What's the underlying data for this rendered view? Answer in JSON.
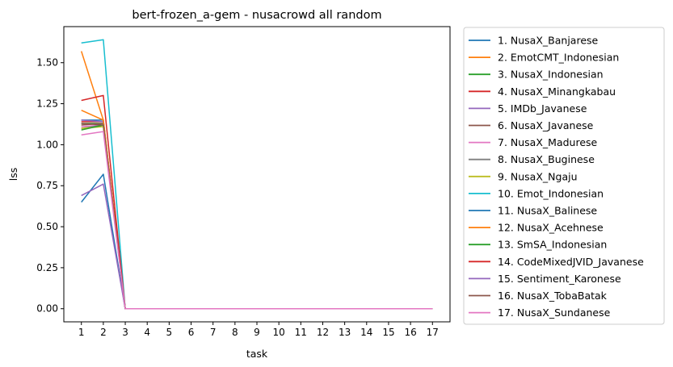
{
  "chart_data": {
    "type": "line",
    "title": "bert-frozen_a-gem - nusacrowd all random",
    "xlabel": "task",
    "ylabel": "lss",
    "x": [
      1,
      2,
      3,
      4,
      5,
      6,
      7,
      8,
      9,
      10,
      11,
      12,
      13,
      14,
      15,
      16,
      17
    ],
    "xticks": [
      "1",
      "2",
      "3",
      "4",
      "5",
      "6",
      "7",
      "8",
      "9",
      "10",
      "11",
      "12",
      "13",
      "14",
      "15",
      "16",
      "17"
    ],
    "yticks": [
      "0.00",
      "0.25",
      "0.50",
      "0.75",
      "1.00",
      "1.25",
      "1.50"
    ],
    "ytick_values": [
      0,
      0.25,
      0.5,
      0.75,
      1.0,
      1.25,
      1.5
    ],
    "xlim": [
      0.2,
      17.8
    ],
    "ylim": [
      -0.08,
      1.72
    ],
    "grid": false,
    "legend_position": "outside-right",
    "series": [
      {
        "name": "1. NusaX_Banjarese",
        "color": "#1f77b4",
        "values": [
          1.15,
          1.15,
          0.0,
          0,
          0,
          0,
          0,
          0,
          0,
          0,
          0,
          0,
          0,
          0,
          0,
          0,
          0
        ]
      },
      {
        "name": "2. EmotCMT_Indonesian",
        "color": "#ff7f0e",
        "values": [
          1.57,
          1.15,
          0.0,
          0,
          0,
          0,
          0,
          0,
          0,
          0,
          0,
          0,
          0,
          0,
          0,
          0,
          0
        ]
      },
      {
        "name": "3. NusaX_Indonesian",
        "color": "#2ca02c",
        "values": [
          1.13,
          1.13,
          0.0,
          0,
          0,
          0,
          0,
          0,
          0,
          0,
          0,
          0,
          0,
          0,
          0,
          0,
          0
        ]
      },
      {
        "name": "4. NusaX_Minangkabau",
        "color": "#d62728",
        "values": [
          1.14,
          1.14,
          0.0,
          0,
          0,
          0,
          0,
          0,
          0,
          0,
          0,
          0,
          0,
          0,
          0,
          0,
          0
        ]
      },
      {
        "name": "5. IMDb_Javanese",
        "color": "#9467bd",
        "values": [
          1.15,
          1.14,
          0.0,
          0,
          0,
          0,
          0,
          0,
          0,
          0,
          0,
          0,
          0,
          0,
          0,
          0,
          0
        ]
      },
      {
        "name": "6. NusaX_Javanese",
        "color": "#8c564b",
        "values": [
          1.12,
          1.13,
          0.0,
          0,
          0,
          0,
          0,
          0,
          0,
          0,
          0,
          0,
          0,
          0,
          0,
          0,
          0
        ]
      },
      {
        "name": "7. NusaX_Madurese",
        "color": "#e377c2",
        "values": [
          1.11,
          1.12,
          0.0,
          0,
          0,
          0,
          0,
          0,
          0,
          0,
          0,
          0,
          0,
          0,
          0,
          0,
          0
        ]
      },
      {
        "name": "8. NusaX_Buginese",
        "color": "#7f7f7f",
        "values": [
          1.1,
          1.12,
          0.0,
          0,
          0,
          0,
          0,
          0,
          0,
          0,
          0,
          0,
          0,
          0,
          0,
          0,
          0
        ]
      },
      {
        "name": "9. NusaX_Ngaju",
        "color": "#bcbd22",
        "values": [
          1.1,
          1.11,
          0.0,
          0,
          0,
          0,
          0,
          0,
          0,
          0,
          0,
          0,
          0,
          0,
          0,
          0,
          0
        ]
      },
      {
        "name": "10. Emot_Indonesian",
        "color": "#17becf",
        "values": [
          1.62,
          1.64,
          0.0,
          0,
          0,
          0,
          0,
          0,
          0,
          0,
          0,
          0,
          0,
          0,
          0,
          0,
          0
        ]
      },
      {
        "name": "11. NusaX_Balinese",
        "color": "#1f77b4",
        "values": [
          0.65,
          0.82,
          0.0,
          0,
          0,
          0,
          0,
          0,
          0,
          0,
          0,
          0,
          0,
          0,
          0,
          0,
          0
        ]
      },
      {
        "name": "12. NusaX_Acehnese",
        "color": "#ff7f0e",
        "values": [
          1.21,
          1.15,
          0.0,
          0,
          0,
          0,
          0,
          0,
          0,
          0,
          0,
          0,
          0,
          0,
          0,
          0,
          0
        ]
      },
      {
        "name": "13. SmSA_Indonesian",
        "color": "#2ca02c",
        "values": [
          1.09,
          1.12,
          0.0,
          0,
          0,
          0,
          0,
          0,
          0,
          0,
          0,
          0,
          0,
          0,
          0,
          0,
          0
        ]
      },
      {
        "name": "14. CodeMixedJVID_Javanese",
        "color": "#d62728",
        "values": [
          1.27,
          1.3,
          0.0,
          0,
          0,
          0,
          0,
          0,
          0,
          0,
          0,
          0,
          0,
          0,
          0,
          0,
          0
        ]
      },
      {
        "name": "15. Sentiment_Karonese",
        "color": "#9467bd",
        "values": [
          0.69,
          0.76,
          0.0,
          0,
          0,
          0,
          0,
          0,
          0,
          0,
          0,
          0,
          0,
          0,
          0,
          0,
          0
        ]
      },
      {
        "name": "16. NusaX_TobaBatak",
        "color": "#8c564b",
        "values": [
          1.13,
          1.12,
          0.0,
          0,
          0,
          0,
          0,
          0,
          0,
          0,
          0,
          0,
          0,
          0,
          0,
          0,
          0
        ]
      },
      {
        "name": "17. NusaX_Sundanese",
        "color": "#e377c2",
        "values": [
          1.06,
          1.08,
          0.0,
          0,
          0,
          0,
          0,
          0,
          0,
          0,
          0,
          0,
          0,
          0,
          0,
          0,
          0
        ]
      }
    ]
  }
}
